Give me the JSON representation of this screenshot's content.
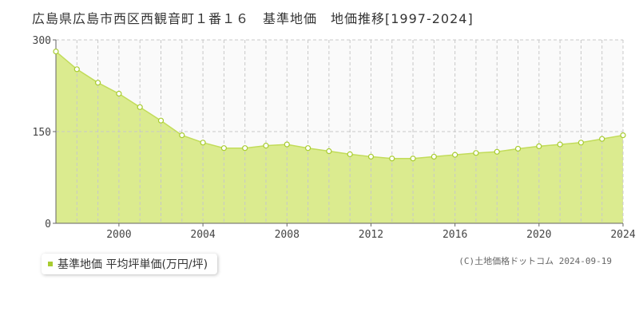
{
  "title": "広島県広島市西区西観音町１番１６　基準地価　地価推移[1997-2024]",
  "legend_label": "基準地価 平均坪単価(万円/坪)",
  "credit": "(C)土地価格ドットコム 2024-09-19",
  "colors": {
    "area": "#dbeb8f",
    "line": "#c2dc5a",
    "point_fill": "#ffffff",
    "point_stroke": "#a8cc30",
    "legend": "#a8cc30"
  },
  "chart_data": {
    "type": "area",
    "x": [
      1997,
      1998,
      1999,
      2000,
      2001,
      2002,
      2003,
      2004,
      2005,
      2006,
      2007,
      2008,
      2009,
      2010,
      2011,
      2012,
      2013,
      2014,
      2015,
      2016,
      2017,
      2018,
      2019,
      2020,
      2021,
      2022,
      2023,
      2024
    ],
    "series": [
      {
        "name": "基準地価 平均坪単価(万円/坪)",
        "values": [
          281,
          252,
          230,
          212,
          190,
          168,
          144,
          132,
          123,
          123,
          127,
          129,
          123,
          118,
          113,
          109,
          106,
          106,
          109,
          112,
          115,
          117,
          122,
          126,
          129,
          132,
          138,
          144
        ]
      }
    ],
    "xlim": [
      1997,
      2024
    ],
    "ylim": [
      0,
      300
    ],
    "yticks": [
      0,
      150,
      300
    ],
    "xticks": [
      2000,
      2004,
      2008,
      2012,
      2016,
      2020,
      2024
    ],
    "grid": true,
    "legend_position": "bottom-left"
  }
}
